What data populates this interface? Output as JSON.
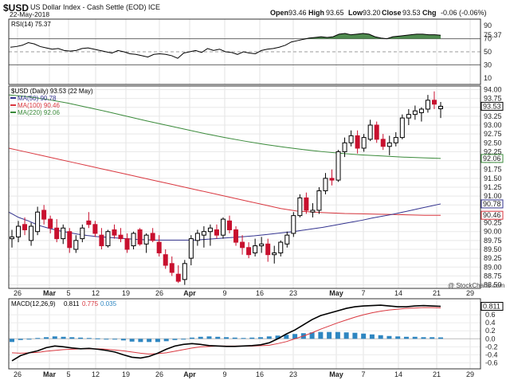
{
  "header": {
    "symbol": "$USD",
    "name": "US Dollar Index - Cash Settle (EOD) ICE",
    "date": "22-May-2018",
    "open_label": "Open",
    "open": "93.46",
    "high_label": "High",
    "high": "93.65",
    "low_label": "Low",
    "low": "93.20",
    "close_label": "Close",
    "close": "93.53",
    "chg_label": "Chg",
    "chg": "-0.06 (-0.06%)",
    "watermark": "@ StockCharts.com"
  },
  "colors": {
    "up": "#ffffff",
    "down": "#c8102e",
    "ma50": "#33338f",
    "ma100": "#d9373f",
    "ma220": "#3a8a3a",
    "rsi_fill": "#3c7d3c",
    "macd": "#000000",
    "signal": "#d9373f",
    "hist": "#2e86c1"
  },
  "chart_data": [
    {
      "type": "line",
      "panel": "RSI",
      "legend": "RSI(14) 75.37",
      "ylim": [
        0,
        100
      ],
      "yticks": [
        "90",
        "70",
        "50",
        "30",
        "10"
      ],
      "levels": [
        70,
        50,
        30
      ],
      "last_label": "75.37",
      "values": [
        57,
        58,
        60,
        64,
        62,
        58,
        56,
        54,
        55,
        52,
        51,
        52,
        55,
        56,
        54,
        52,
        50,
        48,
        52,
        50,
        47,
        46,
        44,
        42,
        46,
        47,
        46,
        44,
        40,
        48,
        50,
        52,
        49,
        55,
        52,
        54,
        50,
        49,
        46,
        50,
        48,
        47,
        52,
        54,
        55,
        57,
        60,
        65,
        67,
        69,
        71,
        72,
        73,
        72,
        73,
        77,
        78,
        76,
        77,
        78,
        77,
        73,
        71,
        70,
        73,
        74,
        75,
        76,
        77,
        77,
        76,
        76,
        75.37
      ]
    },
    {
      "type": "candlestick",
      "panel": "Price",
      "legend": [
        "$USD (Daily) 93.53 (22 May)",
        "MA(50) 90.78",
        "MA(100) 90.46",
        "MA(220) 92.06"
      ],
      "ylim": [
        88.4,
        94.1
      ],
      "yticks": [
        "94.00",
        "93.75",
        "93.50",
        "93.25",
        "93.00",
        "92.75",
        "92.50",
        "92.25",
        "92.00",
        "91.75",
        "91.50",
        "91.25",
        "91.00",
        "90.75",
        "90.50",
        "90.25",
        "90.00",
        "89.75",
        "89.50",
        "89.25",
        "89.00",
        "88.75",
        "88.50"
      ],
      "x_ticks": [
        "26",
        "Mar",
        "5",
        "12",
        "19",
        "26",
        "Apr",
        "9",
        "16",
        "23",
        "May",
        "7",
        "14",
        "21",
        "29"
      ],
      "ohlc": [
        [
          89.8,
          90.05,
          89.55,
          89.85
        ],
        [
          89.85,
          90.3,
          89.7,
          90.15
        ],
        [
          90.2,
          90.4,
          89.9,
          90.05
        ],
        [
          89.75,
          90.25,
          89.6,
          90.15
        ],
        [
          90.0,
          90.7,
          89.9,
          90.55
        ],
        [
          90.6,
          90.75,
          90.2,
          90.35
        ],
        [
          90.35,
          90.45,
          89.95,
          90.1
        ],
        [
          90.1,
          90.35,
          89.7,
          89.8
        ],
        [
          89.8,
          90.2,
          89.65,
          90.1
        ],
        [
          90.0,
          90.1,
          89.4,
          89.55
        ],
        [
          89.5,
          89.9,
          89.4,
          89.75
        ],
        [
          89.8,
          90.2,
          89.7,
          90.1
        ],
        [
          90.3,
          90.55,
          90.1,
          90.2
        ],
        [
          90.2,
          90.3,
          89.85,
          89.95
        ],
        [
          89.9,
          90.1,
          89.5,
          89.6
        ],
        [
          89.6,
          90.05,
          89.55,
          90.0
        ],
        [
          90.05,
          90.2,
          89.8,
          89.9
        ],
        [
          89.9,
          90.1,
          89.7,
          89.8
        ],
        [
          89.8,
          89.95,
          89.4,
          89.5
        ],
        [
          89.6,
          90.0,
          89.5,
          89.95
        ],
        [
          90.05,
          90.1,
          89.6,
          89.65
        ],
        [
          89.65,
          89.95,
          89.4,
          89.9
        ],
        [
          89.95,
          90.1,
          89.7,
          89.75
        ],
        [
          89.7,
          89.9,
          89.3,
          89.4
        ],
        [
          89.35,
          89.5,
          88.95,
          89.05
        ],
        [
          89.1,
          89.3,
          88.75,
          88.85
        ],
        [
          88.8,
          89.05,
          88.55,
          88.6
        ],
        [
          88.65,
          89.2,
          88.5,
          89.1
        ],
        [
          89.25,
          89.9,
          89.05,
          89.8
        ],
        [
          89.75,
          90.05,
          89.6,
          89.95
        ],
        [
          89.9,
          90.15,
          89.55,
          90.0
        ],
        [
          90.0,
          90.2,
          89.6,
          90.1
        ],
        [
          90.05,
          90.2,
          89.8,
          89.9
        ],
        [
          89.9,
          90.4,
          89.8,
          90.35
        ],
        [
          90.3,
          90.45,
          89.95,
          90.05
        ],
        [
          90.05,
          90.15,
          89.6,
          89.7
        ],
        [
          89.7,
          89.9,
          89.35,
          89.55
        ],
        [
          89.55,
          89.7,
          89.25,
          89.35
        ],
        [
          89.4,
          89.8,
          89.3,
          89.6
        ],
        [
          89.6,
          89.85,
          89.4,
          89.65
        ],
        [
          89.65,
          89.8,
          89.15,
          89.35
        ],
        [
          89.35,
          89.6,
          89.1,
          89.4
        ],
        [
          89.4,
          89.75,
          89.3,
          89.7
        ],
        [
          89.65,
          90.0,
          89.55,
          89.9
        ],
        [
          89.95,
          90.55,
          89.85,
          90.45
        ],
        [
          90.45,
          91.05,
          90.4,
          90.95
        ],
        [
          90.95,
          91.1,
          90.5,
          90.6
        ],
        [
          90.55,
          90.8,
          90.4,
          90.6
        ],
        [
          90.6,
          91.25,
          90.5,
          91.15
        ],
        [
          91.15,
          91.65,
          91.05,
          91.5
        ],
        [
          91.5,
          91.75,
          91.3,
          91.45
        ],
        [
          91.45,
          92.3,
          91.4,
          92.25
        ],
        [
          92.25,
          92.65,
          92.1,
          92.5
        ],
        [
          92.5,
          92.85,
          92.4,
          92.7
        ],
        [
          92.7,
          92.85,
          92.2,
          92.35
        ],
        [
          92.35,
          92.75,
          92.25,
          92.65
        ],
        [
          92.6,
          93.15,
          92.55,
          93.0
        ],
        [
          93.0,
          93.1,
          92.5,
          92.6
        ],
        [
          92.6,
          92.75,
          92.3,
          92.4
        ],
        [
          92.4,
          92.7,
          92.15,
          92.5
        ],
        [
          92.5,
          92.8,
          92.4,
          92.65
        ],
        [
          92.65,
          93.3,
          92.6,
          93.2
        ],
        [
          93.2,
          93.45,
          93.0,
          93.3
        ],
        [
          93.3,
          93.55,
          93.15,
          93.4
        ],
        [
          93.35,
          93.5,
          93.1,
          93.45
        ],
        [
          93.45,
          93.85,
          93.35,
          93.7
        ],
        [
          93.7,
          93.95,
          93.45,
          93.59
        ],
        [
          93.46,
          93.65,
          93.2,
          93.53
        ]
      ],
      "ma50": [
        90.55,
        90.4,
        90.3,
        90.18,
        90.1,
        90.03,
        89.98,
        89.93,
        89.89,
        89.86,
        89.84,
        89.82,
        89.8,
        89.78,
        89.77,
        89.76,
        89.76,
        89.76,
        89.76,
        89.76,
        89.78,
        89.8,
        89.82,
        89.84,
        89.86,
        89.88,
        89.91,
        89.94,
        89.97,
        90.0,
        90.04,
        90.08,
        90.12,
        90.17,
        90.22,
        90.27,
        90.32,
        90.38,
        90.43,
        90.48,
        90.54,
        90.6,
        90.66,
        90.72,
        90.78
      ],
      "ma100": [
        92.35,
        92.25,
        92.15,
        92.05,
        91.95,
        91.85,
        91.75,
        91.65,
        91.55,
        91.45,
        91.35,
        91.25,
        91.15,
        91.05,
        90.95,
        90.85,
        90.75,
        90.65,
        90.58,
        90.55,
        90.53,
        90.51,
        90.5,
        90.49,
        90.48,
        90.47,
        90.46,
        90.46
      ],
      "ma220": [
        93.85,
        93.8,
        93.72,
        93.62,
        93.5,
        93.38,
        93.25,
        93.12,
        93.0,
        92.88,
        92.76,
        92.65,
        92.55,
        92.46,
        92.38,
        92.31,
        92.25,
        92.2,
        92.16,
        92.13,
        92.1,
        92.08,
        92.06
      ],
      "last_labels": {
        "close": "93.53",
        "ma220": "92.06",
        "ma50": "90.78",
        "ma100": "90.46"
      }
    },
    {
      "type": "line",
      "panel": "MACD",
      "legend": [
        "MACD(12,26,9)",
        "0.811",
        "0.775",
        "0.035"
      ],
      "ylim": [
        -0.75,
        1.0
      ],
      "yticks": [
        "0.6",
        "0.4",
        "0.2",
        "0.0",
        "-0.2",
        "-0.4",
        "-0.6"
      ],
      "macd": [
        -0.55,
        -0.42,
        -0.35,
        -0.3,
        -0.22,
        -0.18,
        -0.2,
        -0.23,
        -0.25,
        -0.24,
        -0.26,
        -0.29,
        -0.33,
        -0.4,
        -0.46,
        -0.48,
        -0.44,
        -0.36,
        -0.26,
        -0.18,
        -0.14,
        -0.12,
        -0.14,
        -0.17,
        -0.18,
        -0.19,
        -0.19,
        -0.18,
        -0.17,
        -0.15,
        -0.1,
        0.0,
        0.12,
        0.22,
        0.35,
        0.48,
        0.58,
        0.64,
        0.7,
        0.76,
        0.8,
        0.82,
        0.83,
        0.84,
        0.82,
        0.8,
        0.8,
        0.82,
        0.83,
        0.82,
        0.811
      ],
      "signal": [
        -0.35,
        -0.36,
        -0.35,
        -0.34,
        -0.31,
        -0.29,
        -0.27,
        -0.26,
        -0.25,
        -0.25,
        -0.25,
        -0.26,
        -0.28,
        -0.3,
        -0.33,
        -0.36,
        -0.38,
        -0.37,
        -0.35,
        -0.31,
        -0.27,
        -0.23,
        -0.2,
        -0.19,
        -0.18,
        -0.18,
        -0.18,
        -0.18,
        -0.18,
        -0.17,
        -0.16,
        -0.12,
        -0.07,
        0.0,
        0.07,
        0.15,
        0.24,
        0.32,
        0.4,
        0.47,
        0.54,
        0.6,
        0.65,
        0.69,
        0.72,
        0.74,
        0.76,
        0.77,
        0.78,
        0.78,
        0.775
      ],
      "hist": [
        -0.08,
        -0.03,
        0.0,
        0.02,
        0.04,
        0.06,
        0.05,
        0.04,
        0.03,
        0.02,
        0.01,
        0.0,
        -0.01,
        -0.04,
        -0.07,
        -0.08,
        -0.08,
        -0.08,
        -0.06,
        -0.03,
        0.0,
        0.03,
        0.05,
        0.06,
        0.05,
        0.04,
        0.03,
        0.02,
        0.03,
        0.04,
        0.06,
        0.08,
        0.1,
        0.12,
        0.14,
        0.16,
        0.17,
        0.17,
        0.17,
        0.16,
        0.15,
        0.13,
        0.11,
        0.09,
        0.07,
        0.06,
        0.05,
        0.05,
        0.04,
        0.04,
        0.035
      ],
      "last_labels": {
        "macd": "0.811",
        "signal": "0.775"
      }
    }
  ]
}
